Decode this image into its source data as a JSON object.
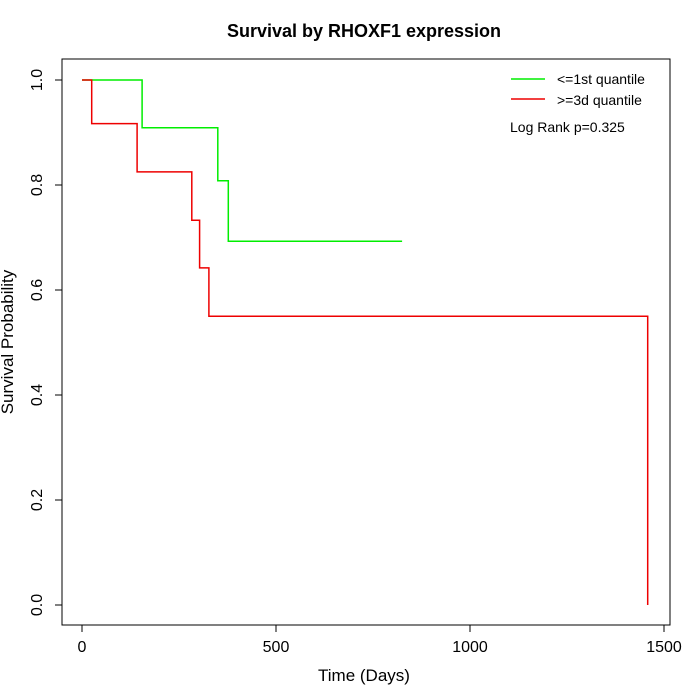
{
  "chart_data": {
    "type": "line",
    "title": "Survival by RHOXF1 expression",
    "xlabel": "Time (Days)",
    "ylabel": "Survival Probability",
    "xlim": [
      0,
      1500
    ],
    "ylim": [
      0,
      1
    ],
    "x_ticks": [
      0,
      500,
      1000,
      1500
    ],
    "y_ticks": [
      0.0,
      0.2,
      0.4,
      0.6,
      0.8,
      1.0
    ],
    "x_tick_labels": [
      "0",
      "500",
      "1000",
      "1500"
    ],
    "y_tick_labels": [
      "0.0",
      "0.2",
      "0.4",
      "0.6",
      "0.8",
      "1.0"
    ],
    "grid": false,
    "legend_position": "top-right",
    "annotation": "Log Rank p=0.325",
    "series": [
      {
        "name": "<=1st quantile",
        "color": "#00ee00",
        "step": true,
        "x": [
          0,
          155,
          155,
          350,
          350,
          377,
          377,
          825
        ],
        "y": [
          1.0,
          1.0,
          0.909,
          0.909,
          0.808,
          0.808,
          0.693,
          0.693
        ]
      },
      {
        "name": ">=3d quantile",
        "color": "#ee0000",
        "step": true,
        "x": [
          0,
          25,
          25,
          142,
          142,
          283,
          283,
          303,
          303,
          327,
          327,
          1458,
          1458
        ],
        "y": [
          1.0,
          1.0,
          0.917,
          0.917,
          0.825,
          0.825,
          0.733,
          0.733,
          0.642,
          0.642,
          0.55,
          0.55,
          0.0
        ]
      }
    ]
  }
}
